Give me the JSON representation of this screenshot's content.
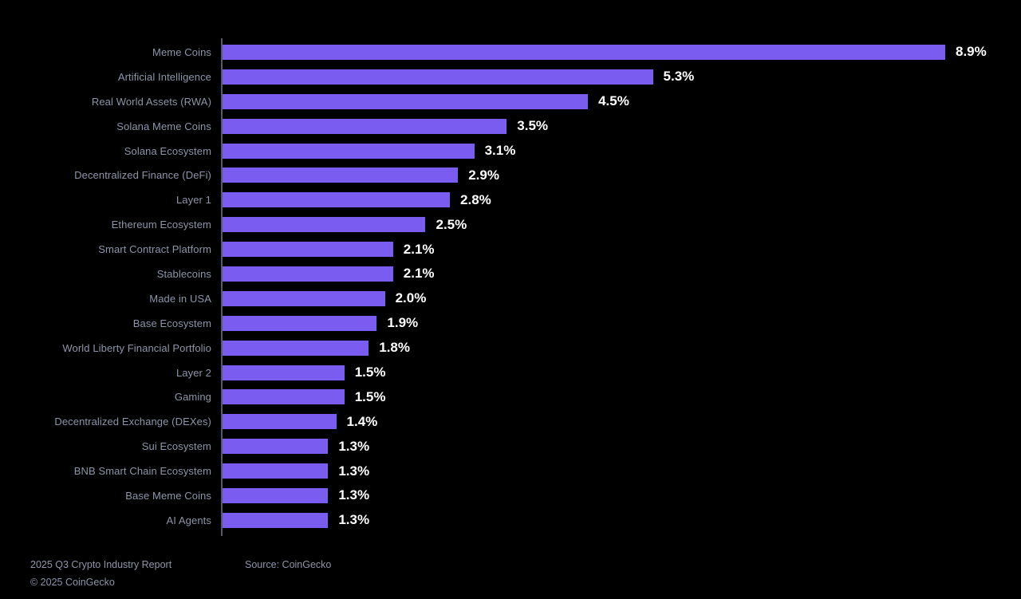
{
  "chart_data": {
    "type": "bar",
    "orientation": "horizontal",
    "title": "",
    "categories": [
      "Meme Coins",
      "Artificial Intelligence",
      "Real World Assets (RWA)",
      "Solana Meme Coins",
      "Solana Ecosystem",
      "Decentralized Finance (DeFi)",
      "Layer 1",
      "Ethereum Ecosystem",
      "Smart Contract Platform",
      "Stablecoins",
      "Made in USA",
      "Base Ecosystem",
      "World Liberty Financial Portfolio",
      "Layer 2",
      "Gaming",
      "Decentralized Exchange (DEXes)",
      "Sui Ecosystem",
      "BNB Smart Chain Ecosystem",
      "Base Meme Coins",
      "AI Agents"
    ],
    "values": [
      8.9,
      5.3,
      4.5,
      3.5,
      3.1,
      2.9,
      2.8,
      2.5,
      2.1,
      2.1,
      2.0,
      1.9,
      1.8,
      1.5,
      1.5,
      1.4,
      1.3,
      1.3,
      1.3,
      1.3
    ],
    "value_suffix": "%",
    "value_decimals": 1,
    "xlim": [
      0,
      8.9
    ],
    "grid": false,
    "data_labels": true,
    "legend": false,
    "colors": {
      "background": "#000000",
      "bar": "#7a5cf0",
      "category_label": "#8e95aa",
      "value_label": "#ffffff",
      "axis_line": "#565b68",
      "footer_text": "#8e95aa"
    }
  },
  "footer": {
    "report": "2025 Q3 Crypto Industry Report",
    "copyright": "© 2025 CoinGecko",
    "source": "Source: CoinGecko"
  }
}
